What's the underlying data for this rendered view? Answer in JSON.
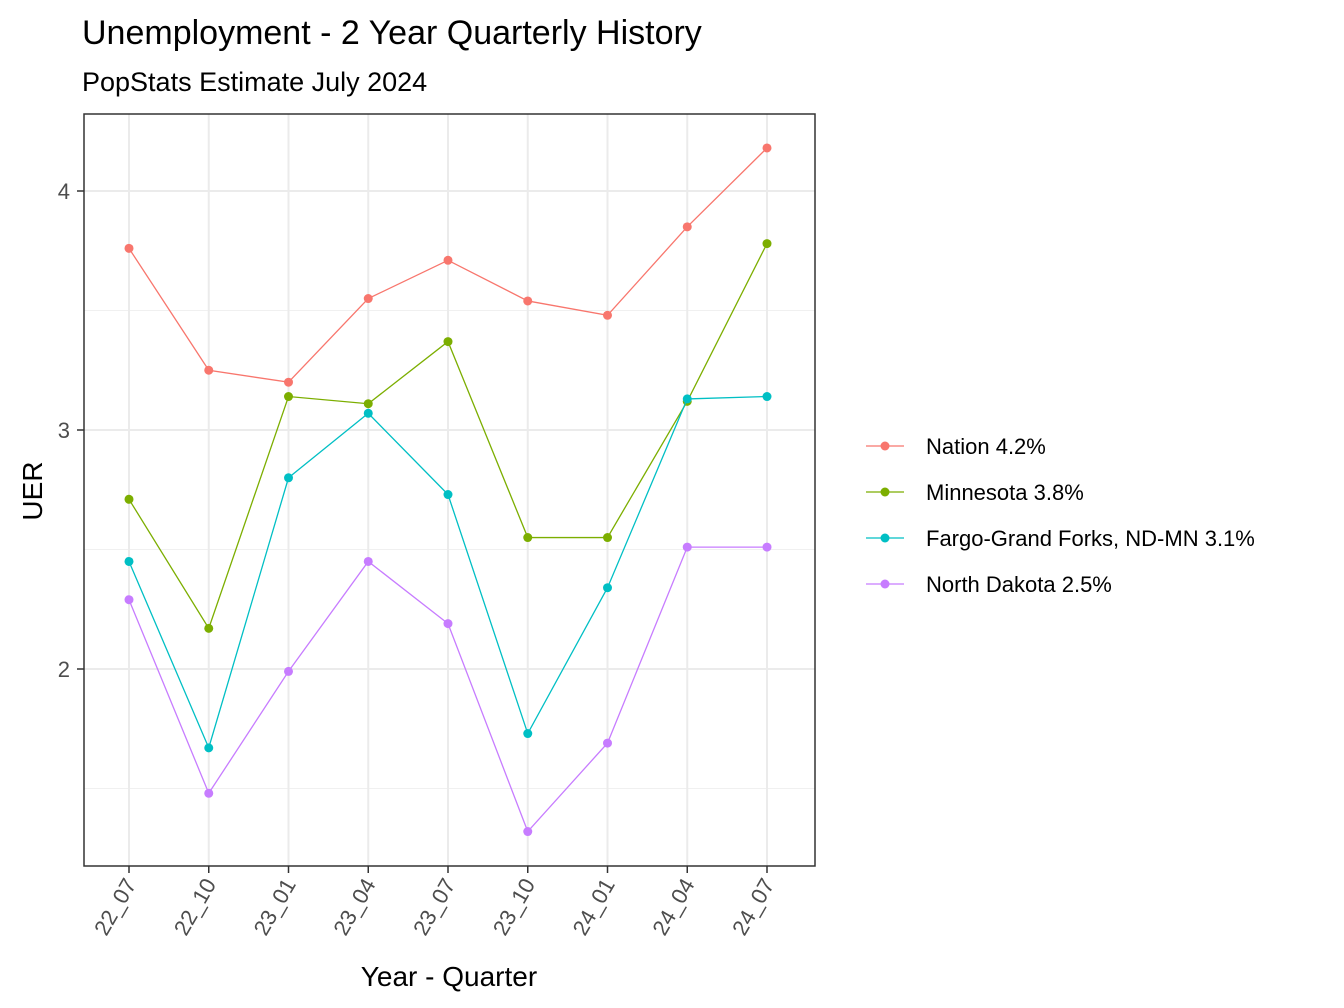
{
  "chart_data": {
    "type": "line",
    "title": "Unemployment - 2 Year Quarterly History",
    "subtitle": "PopStats Estimate July 2024",
    "xlabel": "Year - Quarter",
    "ylabel": "UER",
    "categories": [
      "22_07",
      "22_10",
      "23_01",
      "23_04",
      "23_07",
      "23_10",
      "24_01",
      "24_04",
      "24_07"
    ],
    "ylim": [
      1.29,
      4.45
    ],
    "yticks": [
      2,
      3,
      4
    ],
    "y_minor_ticks": [
      1.5,
      2.5,
      3.5
    ],
    "grid": true,
    "legend_position": "right",
    "series": [
      {
        "name": "Nation 4.2%",
        "color": "#F8766D",
        "values": [
          3.76,
          3.25,
          3.2,
          3.55,
          3.71,
          3.54,
          3.48,
          3.85,
          4.18
        ]
      },
      {
        "name": "Minnesota 3.8%",
        "color": "#7CAE00",
        "values": [
          2.71,
          2.17,
          3.14,
          3.11,
          3.37,
          2.55,
          2.55,
          3.12,
          3.78
        ]
      },
      {
        "name": "Fargo-Grand Forks, ND-MN 3.1%",
        "color": "#00BFC4",
        "values": [
          2.45,
          1.67,
          2.8,
          3.07,
          2.73,
          1.73,
          2.34,
          3.13,
          3.14
        ]
      },
      {
        "name": "North Dakota 2.5%",
        "color": "#C77CFF",
        "values": [
          2.29,
          1.48,
          1.99,
          2.45,
          2.19,
          1.32,
          1.69,
          2.51,
          2.51
        ]
      }
    ]
  }
}
